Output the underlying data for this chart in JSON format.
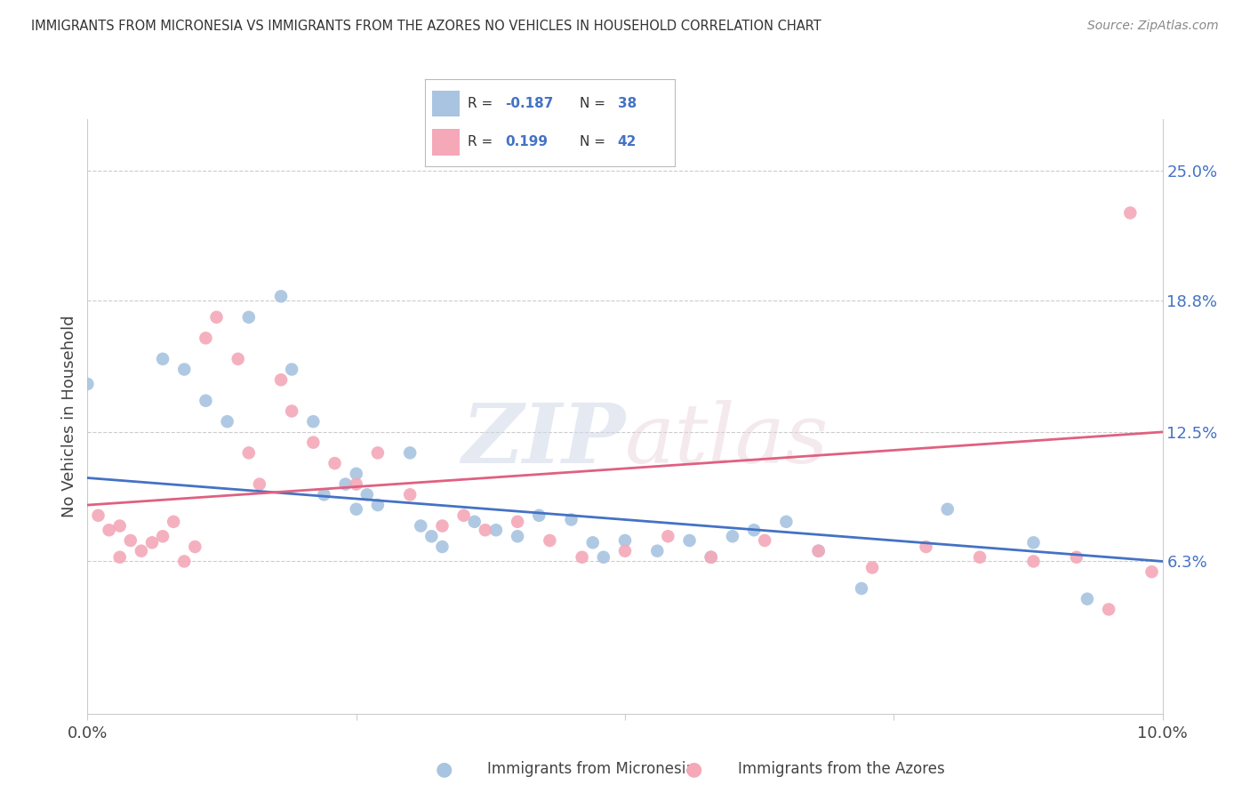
{
  "title": "IMMIGRANTS FROM MICRONESIA VS IMMIGRANTS FROM THE AZORES NO VEHICLES IN HOUSEHOLD CORRELATION CHART",
  "source": "Source: ZipAtlas.com",
  "ylabel": "No Vehicles in Household",
  "ytick_labels": [
    "25.0%",
    "18.8%",
    "12.5%",
    "6.3%"
  ],
  "ytick_vals": [
    0.25,
    0.188,
    0.125,
    0.063
  ],
  "xlim": [
    0.0,
    0.1
  ],
  "ylim": [
    -0.01,
    0.275
  ],
  "blue_R": "-0.187",
  "blue_N": "38",
  "pink_R": "0.199",
  "pink_N": "42",
  "blue_label": "Immigrants from Micronesia",
  "pink_label": "Immigrants from the Azores",
  "blue_color": "#a8c4e0",
  "pink_color": "#f4a8b8",
  "blue_line_color": "#4472c4",
  "pink_line_color": "#e06080",
  "background_color": "#ffffff",
  "watermark": "ZIPatlas",
  "blue_line_x0": 0.0,
  "blue_line_y0": 0.103,
  "blue_line_x1": 0.1,
  "blue_line_y1": 0.063,
  "pink_line_x0": 0.0,
  "pink_line_y0": 0.09,
  "pink_line_x1": 0.1,
  "pink_line_y1": 0.125,
  "blue_scatter_x": [
    0.0,
    0.007,
    0.009,
    0.011,
    0.013,
    0.015,
    0.018,
    0.019,
    0.021,
    0.022,
    0.024,
    0.025,
    0.025,
    0.026,
    0.027,
    0.03,
    0.031,
    0.032,
    0.033,
    0.036,
    0.038,
    0.04,
    0.042,
    0.045,
    0.047,
    0.048,
    0.05,
    0.053,
    0.056,
    0.058,
    0.06,
    0.062,
    0.065,
    0.068,
    0.072,
    0.08,
    0.088,
    0.093
  ],
  "blue_scatter_y": [
    0.148,
    0.16,
    0.155,
    0.14,
    0.13,
    0.18,
    0.19,
    0.155,
    0.13,
    0.095,
    0.1,
    0.105,
    0.088,
    0.095,
    0.09,
    0.115,
    0.08,
    0.075,
    0.07,
    0.082,
    0.078,
    0.075,
    0.085,
    0.083,
    0.072,
    0.065,
    0.073,
    0.068,
    0.073,
    0.065,
    0.075,
    0.078,
    0.082,
    0.068,
    0.05,
    0.088,
    0.072,
    0.045
  ],
  "pink_scatter_x": [
    0.001,
    0.002,
    0.003,
    0.003,
    0.004,
    0.005,
    0.006,
    0.007,
    0.008,
    0.009,
    0.01,
    0.011,
    0.012,
    0.014,
    0.015,
    0.016,
    0.018,
    0.019,
    0.021,
    0.023,
    0.025,
    0.027,
    0.03,
    0.033,
    0.035,
    0.037,
    0.04,
    0.043,
    0.046,
    0.05,
    0.054,
    0.058,
    0.063,
    0.068,
    0.073,
    0.078,
    0.083,
    0.088,
    0.092,
    0.095,
    0.097,
    0.099
  ],
  "pink_scatter_y": [
    0.085,
    0.078,
    0.065,
    0.08,
    0.073,
    0.068,
    0.072,
    0.075,
    0.082,
    0.063,
    0.07,
    0.17,
    0.18,
    0.16,
    0.115,
    0.1,
    0.15,
    0.135,
    0.12,
    0.11,
    0.1,
    0.115,
    0.095,
    0.08,
    0.085,
    0.078,
    0.082,
    0.073,
    0.065,
    0.068,
    0.075,
    0.065,
    0.073,
    0.068,
    0.06,
    0.07,
    0.065,
    0.063,
    0.065,
    0.04,
    0.23,
    0.058
  ]
}
